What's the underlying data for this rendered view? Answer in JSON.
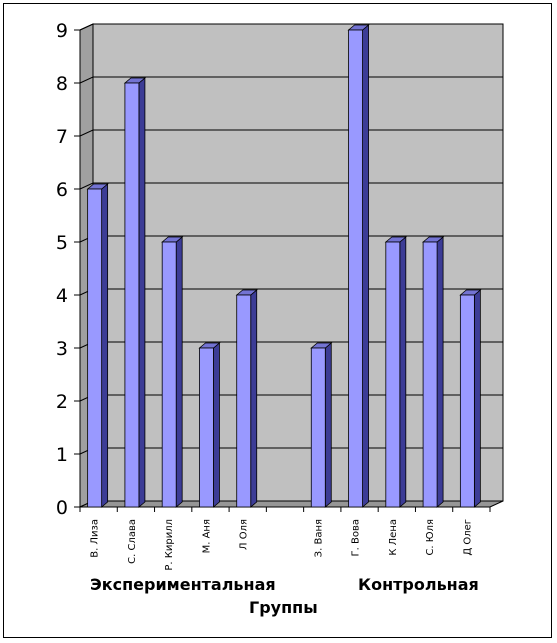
{
  "chart_data": {
    "type": "bar",
    "style": "3d-column",
    "categories": [
      "В. Лиза",
      "С. Слава",
      "Р. Кирилл",
      "М. Аня",
      "Л Оля",
      "",
      "З. Ваня",
      "Г. Вова",
      "К Лена",
      "С. Юля",
      "Д Олег"
    ],
    "values": [
      6,
      8,
      5,
      3,
      4,
      null,
      3,
      9,
      5,
      5,
      4
    ],
    "ylim": [
      0,
      9
    ],
    "yticks": [
      "0",
      "1",
      "2",
      "3",
      "4",
      "5",
      "6",
      "7",
      "8",
      "9"
    ],
    "grid": true,
    "legend": "none",
    "xlabel": "Группы",
    "group_labels": [
      "Экспериментальная",
      "Контрольная"
    ],
    "colors": {
      "bar_front": "#9999ff",
      "bar_side": "#3c3c96",
      "bar_top": "#7373d2",
      "back_wall": "#c0c0c0",
      "side_wall": "#a0a0a0",
      "floor": "#969696",
      "gridline": "#000000"
    }
  }
}
